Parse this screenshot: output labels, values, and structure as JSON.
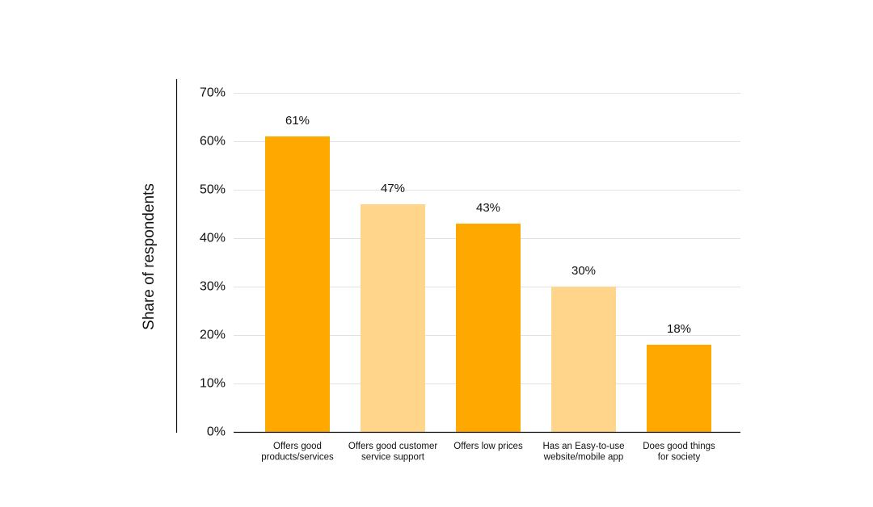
{
  "chart_data": {
    "type": "bar",
    "title": "",
    "xlabel": "",
    "ylabel": "Share of respondents",
    "ylim": [
      0,
      70
    ],
    "yticks": [
      0,
      10,
      20,
      30,
      40,
      50,
      60,
      70
    ],
    "ytick_labels": [
      "0%",
      "10%",
      "20%",
      "30%",
      "40%",
      "50%",
      "60%",
      "70%"
    ],
    "grid": true,
    "categories": [
      [
        "Offers good",
        "products/services"
      ],
      [
        "Offers good customer",
        "service support"
      ],
      [
        "Offers low prices"
      ],
      [
        "Has an Easy-to-use",
        "website/mobile app"
      ],
      [
        "Does good things",
        "for society"
      ]
    ],
    "values": [
      61,
      47,
      43,
      30,
      18
    ],
    "value_labels": [
      "61%",
      "47%",
      "43%",
      "30%",
      "18%"
    ],
    "bar_colors": [
      "#FFA800",
      "#FFD58C",
      "#FFA800",
      "#FFD58C",
      "#FFA800"
    ],
    "gridline_color": "#e2e2e2",
    "axis_color": "#111111"
  }
}
